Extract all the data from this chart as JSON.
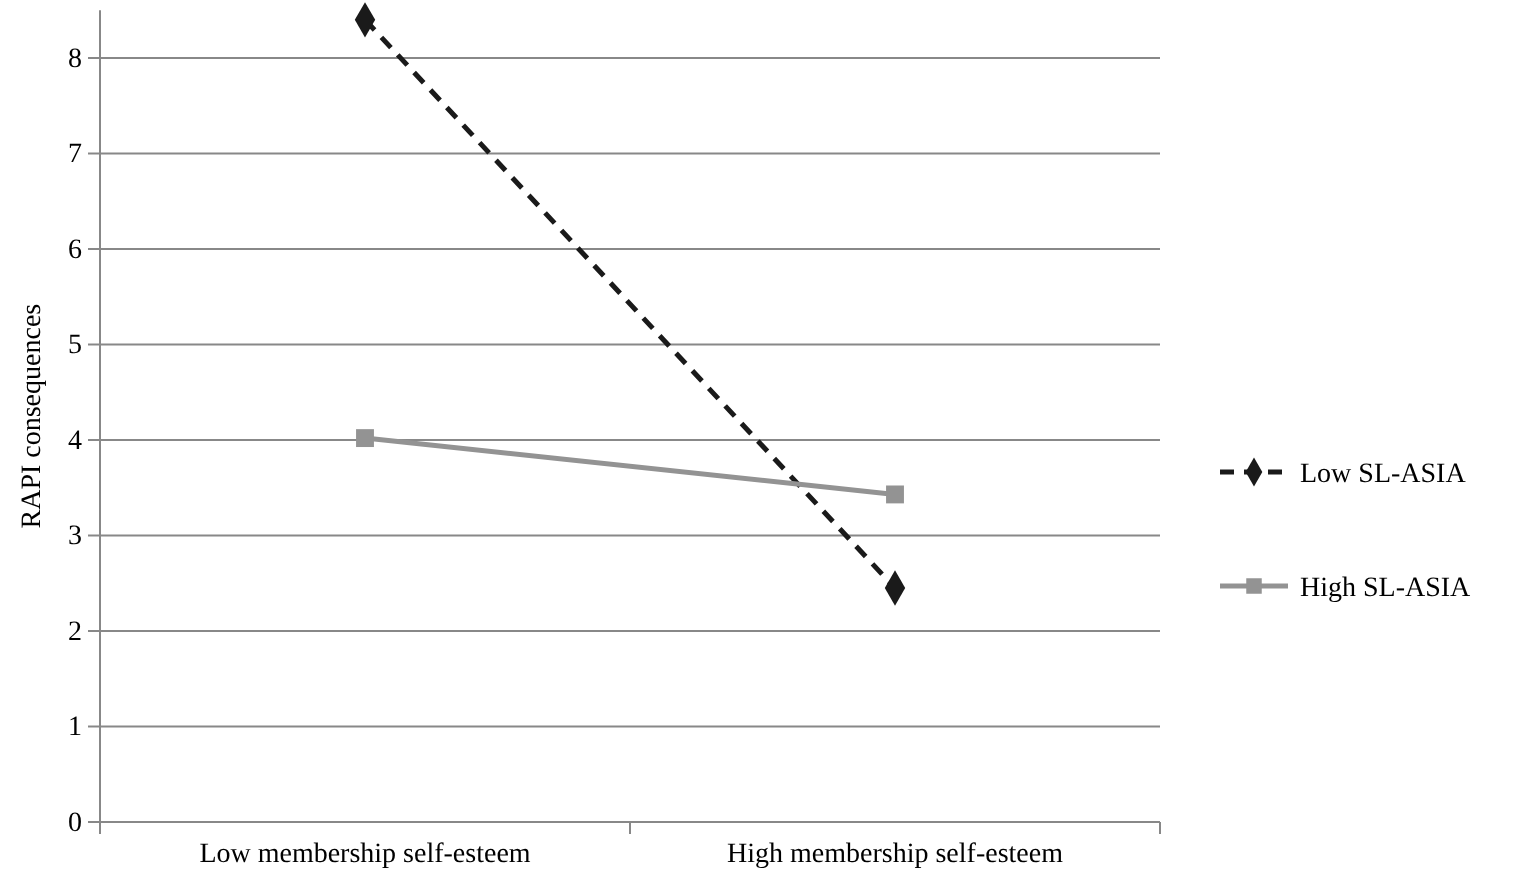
{
  "chart_data": {
    "type": "line",
    "ylabel": "RAPI consequences",
    "categories": [
      "Low membership self-esteem",
      "High membership self-esteem"
    ],
    "series": [
      {
        "name": "Low SL-ASIA",
        "color": "#1a1a1a",
        "values": [
          8.4,
          2.45
        ],
        "marker": "diamond",
        "line_style": "dashed"
      },
      {
        "name": "High SL-ASIA",
        "color": "#939393",
        "values": [
          4.02,
          3.43
        ],
        "marker": "square",
        "line_style": "solid"
      }
    ],
    "ylim": [
      0,
      8.5
    ],
    "yticks": [
      0,
      1,
      2,
      3,
      4,
      5,
      6,
      7,
      8
    ],
    "grid": "y",
    "legend": "right"
  }
}
